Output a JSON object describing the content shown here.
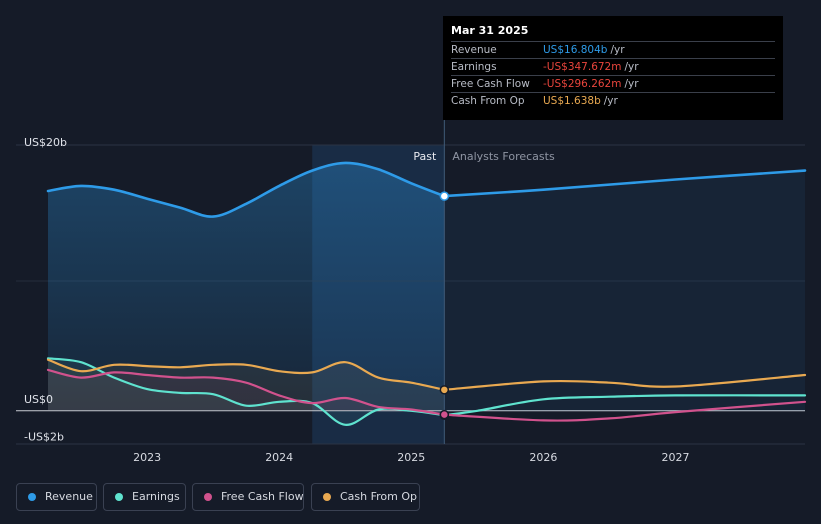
{
  "tooltip": {
    "date": "Mar 31 2025",
    "rows": [
      {
        "label": "Revenue",
        "value": "US$16.804b",
        "unit": "/yr",
        "color": "#2e9be8"
      },
      {
        "label": "Earnings",
        "value": "-US$347.672m",
        "unit": "/yr",
        "color": "#e8453c"
      },
      {
        "label": "Free Cash Flow",
        "value": "-US$296.262m",
        "unit": "/yr",
        "color": "#e8453c"
      },
      {
        "label": "Cash From Op",
        "value": "US$1.638b",
        "unit": "/yr",
        "color": "#e9a951"
      }
    ]
  },
  "legend": [
    {
      "label": "Revenue",
      "color": "#2e9be8"
    },
    {
      "label": "Earnings",
      "color": "#5fe3cf"
    },
    {
      "label": "Free Cash Flow",
      "color": "#d1528d"
    },
    {
      "label": "Cash From Op",
      "color": "#e9a951"
    }
  ],
  "chart_data": {
    "type": "line",
    "title": "",
    "xlabel": "",
    "ylabel": "",
    "unit": "US$b",
    "xlim": [
      2022.25,
      2027.98
    ],
    "ylim": [
      -2.6,
      20.8
    ],
    "y_tick_labels": [
      {
        "value": 20,
        "label": "US$20b"
      },
      {
        "value": 0,
        "label": "US$0"
      },
      {
        "value": -2,
        "label": "-US$2b"
      }
    ],
    "x_ticks": [
      {
        "value": 2023,
        "label": "2023"
      },
      {
        "value": 2024,
        "label": "2024"
      },
      {
        "value": 2025,
        "label": "2025"
      },
      {
        "value": 2026,
        "label": "2026"
      },
      {
        "value": 2027,
        "label": "2027"
      }
    ],
    "divider_x": 2025.25,
    "shade_start_x": 2024.25,
    "past_label": "Past",
    "forecast_label": "Analysts Forecasts",
    "series": [
      {
        "name": "Revenue",
        "color": "#2e9be8",
        "past": [
          [
            2022.25,
            17.2
          ],
          [
            2022.5,
            17.6
          ],
          [
            2022.75,
            17.3
          ],
          [
            2023.0,
            16.6
          ],
          [
            2023.25,
            15.9
          ],
          [
            2023.5,
            15.2
          ],
          [
            2023.75,
            16.2
          ],
          [
            2024.0,
            17.6
          ],
          [
            2024.25,
            18.8
          ],
          [
            2024.5,
            19.4
          ],
          [
            2024.75,
            18.9
          ],
          [
            2025.0,
            17.8
          ],
          [
            2025.25,
            16.8
          ]
        ],
        "forecast": [
          [
            2025.25,
            16.8
          ],
          [
            2026.0,
            17.3
          ],
          [
            2027.0,
            18.1
          ],
          [
            2027.98,
            18.8
          ]
        ]
      },
      {
        "name": "Earnings",
        "color": "#5fe3cf",
        "past": [
          [
            2022.25,
            4.1
          ],
          [
            2022.5,
            3.8
          ],
          [
            2022.75,
            2.6
          ],
          [
            2023.0,
            1.7
          ],
          [
            2023.25,
            1.4
          ],
          [
            2023.5,
            1.3
          ],
          [
            2023.75,
            0.4
          ],
          [
            2024.0,
            0.7
          ],
          [
            2024.25,
            0.6
          ],
          [
            2024.5,
            -1.1
          ],
          [
            2024.75,
            0.1
          ],
          [
            2025.0,
            0.0
          ],
          [
            2025.25,
            -0.35
          ]
        ],
        "forecast": [
          [
            2025.25,
            -0.35
          ],
          [
            2025.5,
            0.0
          ],
          [
            2026.0,
            0.9
          ],
          [
            2026.5,
            1.1
          ],
          [
            2027.0,
            1.2
          ],
          [
            2027.98,
            1.2
          ]
        ]
      },
      {
        "name": "Free Cash Flow",
        "color": "#d1528d",
        "past": [
          [
            2022.25,
            3.2
          ],
          [
            2022.5,
            2.6
          ],
          [
            2022.75,
            3.0
          ],
          [
            2023.0,
            2.8
          ],
          [
            2023.25,
            2.6
          ],
          [
            2023.5,
            2.6
          ],
          [
            2023.75,
            2.2
          ],
          [
            2024.0,
            1.2
          ],
          [
            2024.25,
            0.6
          ],
          [
            2024.5,
            1.0
          ],
          [
            2024.75,
            0.3
          ],
          [
            2025.0,
            0.1
          ],
          [
            2025.25,
            -0.3
          ]
        ],
        "forecast": [
          [
            2025.25,
            -0.3
          ],
          [
            2026.0,
            -0.75
          ],
          [
            2026.5,
            -0.6
          ],
          [
            2027.0,
            -0.1
          ],
          [
            2027.98,
            0.7
          ]
        ]
      },
      {
        "name": "Cash From Op",
        "color": "#e9a951",
        "past": [
          [
            2022.25,
            4.0
          ],
          [
            2022.5,
            3.1
          ],
          [
            2022.75,
            3.6
          ],
          [
            2023.0,
            3.5
          ],
          [
            2023.25,
            3.4
          ],
          [
            2023.5,
            3.6
          ],
          [
            2023.75,
            3.6
          ],
          [
            2024.0,
            3.1
          ],
          [
            2024.25,
            3.0
          ],
          [
            2024.5,
            3.8
          ],
          [
            2024.75,
            2.6
          ],
          [
            2025.0,
            2.2
          ],
          [
            2025.25,
            1.64
          ]
        ],
        "forecast": [
          [
            2025.25,
            1.64
          ],
          [
            2026.0,
            2.3
          ],
          [
            2026.5,
            2.2
          ],
          [
            2027.0,
            1.9
          ],
          [
            2027.98,
            2.8
          ]
        ]
      }
    ],
    "tooltip_marker_x": 2025.25
  }
}
